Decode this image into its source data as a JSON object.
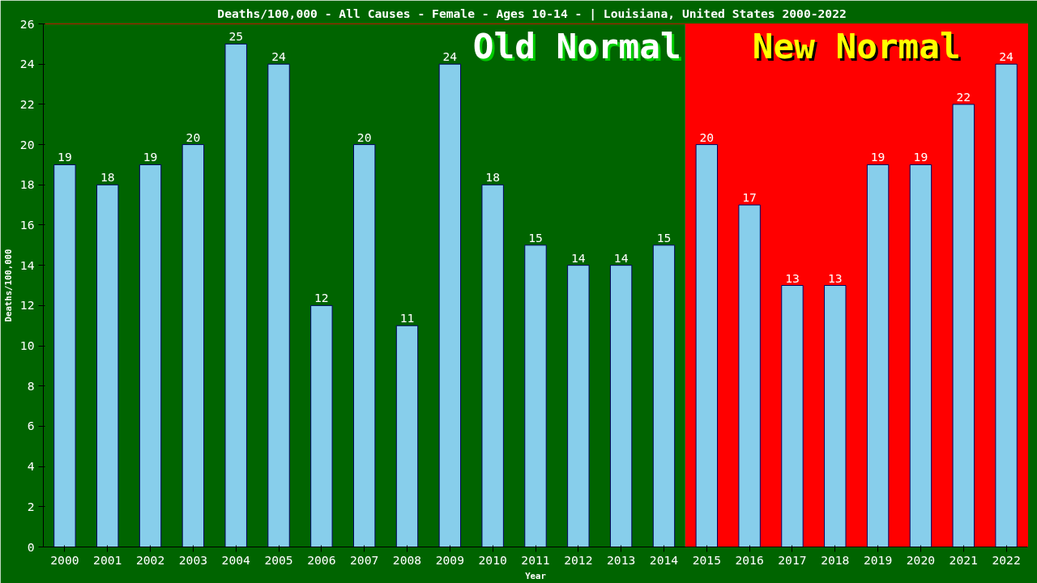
{
  "chart_data": {
    "type": "bar",
    "title": "Deaths/100,000 - All Causes - Female - Ages 10-14 -  | Louisiana, United States 2000-2022",
    "xlabel": "Year",
    "ylabel": "Deaths/100,000",
    "categories": [
      "2000",
      "2001",
      "2002",
      "2003",
      "2004",
      "2005",
      "2006",
      "2007",
      "2008",
      "2009",
      "2010",
      "2011",
      "2012",
      "2013",
      "2014",
      "2015",
      "2016",
      "2017",
      "2018",
      "2019",
      "2020",
      "2021",
      "2022"
    ],
    "values": [
      19,
      18,
      19,
      20,
      25,
      24,
      12,
      20,
      11,
      24,
      18,
      15,
      14,
      14,
      15,
      20,
      17,
      13,
      13,
      19,
      19,
      22,
      24
    ],
    "color": "#87ceeb",
    "data_labels": true,
    "ylim": [
      0,
      26
    ],
    "yticks": [
      0,
      2,
      4,
      6,
      8,
      10,
      12,
      14,
      16,
      18,
      20,
      22,
      24,
      26
    ],
    "grid": false,
    "bands": [
      {
        "axis": "x",
        "from": "2000",
        "to": "2014",
        "label": "Old Normal",
        "color": "#006400"
      },
      {
        "axis": "x",
        "from": "2015",
        "to": "2022",
        "label": "New Normal",
        "color": "#ff0000"
      }
    ]
  }
}
